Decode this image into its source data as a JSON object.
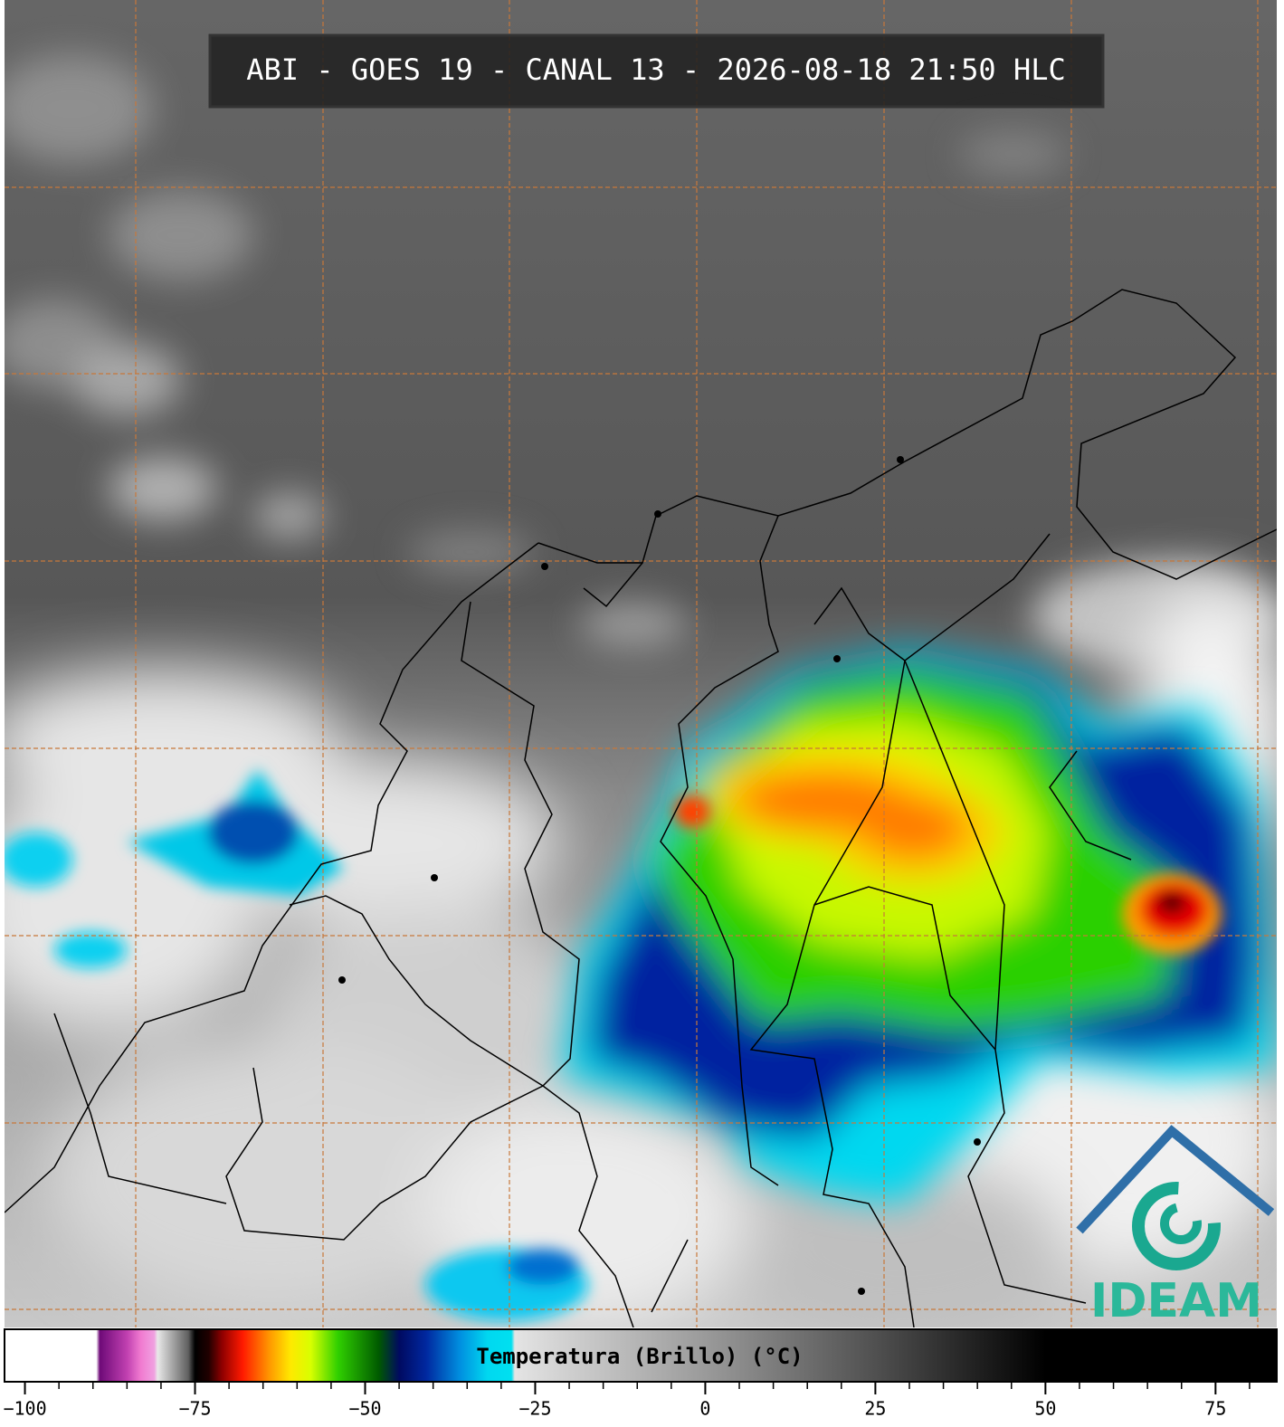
{
  "title": "ABI - GOES 19 - CANAL 13 - 2026-08-18 21:50 HLC",
  "colorbar": {
    "label": "Temperatura (Brillo) (°C)",
    "lim": [
      -103,
      84
    ],
    "ticks": [
      {
        "value": -100,
        "label": "−100"
      },
      {
        "value": -75,
        "label": "−75"
      },
      {
        "value": -50,
        "label": "−50"
      },
      {
        "value": -25,
        "label": "−25"
      },
      0,
      25,
      50,
      75
    ],
    "minor_ticks": [
      -95,
      -90,
      -85,
      -80,
      -70,
      -65,
      -60,
      -55,
      -45,
      -40,
      -35,
      -30,
      -20,
      -15,
      -10,
      -5,
      5,
      10,
      15,
      20,
      30,
      35,
      40,
      45,
      55,
      60,
      65,
      70,
      80
    ],
    "stops": [
      {
        "value": -103,
        "color": "#ffffff"
      },
      {
        "value": -89.5,
        "color": "#ffffff"
      },
      {
        "value": -89,
        "color": "#6e0a78"
      },
      {
        "value": -85,
        "color": "#c040b0"
      },
      {
        "value": -83,
        "color": "#f07ad0"
      },
      {
        "value": -81,
        "color": "#f0a0e0"
      },
      {
        "value": -80.5,
        "color": "#e8e8e8"
      },
      {
        "value": -76,
        "color": "#606060"
      },
      {
        "value": -75,
        "color": "#000000"
      },
      {
        "value": -73,
        "color": "#200000"
      },
      {
        "value": -71,
        "color": "#900000"
      },
      {
        "value": -68,
        "color": "#ff1a00"
      },
      {
        "value": -64,
        "color": "#ff9a00"
      },
      {
        "value": -61,
        "color": "#ffe800"
      },
      {
        "value": -58,
        "color": "#d8ff00"
      },
      {
        "value": -54,
        "color": "#30d000"
      },
      {
        "value": -48,
        "color": "#005a00"
      },
      {
        "value": -45,
        "color": "#000a60"
      },
      {
        "value": -41,
        "color": "#0028a0"
      },
      {
        "value": -36,
        "color": "#0090e0"
      },
      {
        "value": -32,
        "color": "#00d8f0"
      },
      {
        "value": -28.5,
        "color": "#00e0f0"
      },
      {
        "value": -28,
        "color": "#e4e4e4"
      },
      {
        "value": 0,
        "color": "#9a9a9a"
      },
      {
        "value": 25,
        "color": "#505050"
      },
      {
        "value": 50,
        "color": "#000000"
      },
      {
        "value": 84,
        "color": "#000000"
      }
    ]
  },
  "logo": {
    "text": "IDEAM"
  }
}
